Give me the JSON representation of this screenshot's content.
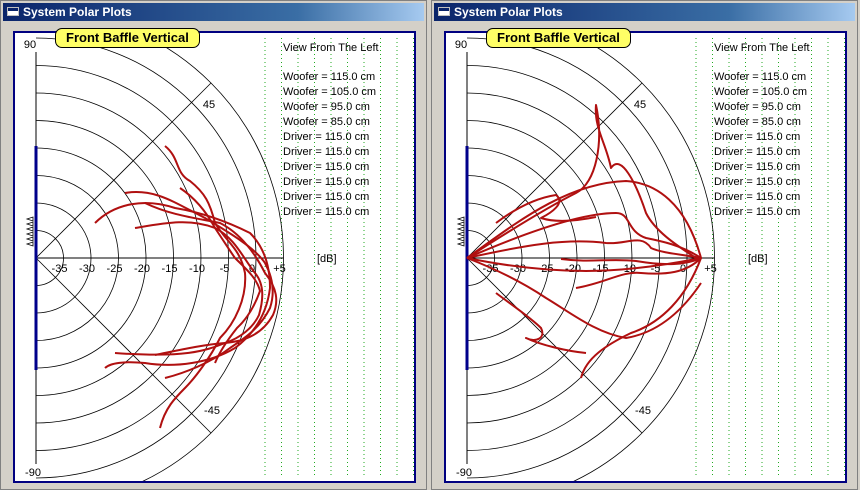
{
  "windows": [
    {
      "title": "System Polar Plots",
      "plot_title": "Front Baffle Vertical",
      "view_label": "View From The Left",
      "legend": [
        "Woofer = 115.0 cm",
        "Woofer = 105.0 cm",
        "Woofer = 95.0 cm",
        "Woofer = 85.0 cm",
        "Driver = 115.0 cm",
        "Driver = 115.0 cm",
        "Driver = 115.0 cm",
        "Driver = 115.0 cm",
        "Driver = 115.0 cm",
        "Driver = 115.0 cm"
      ],
      "angle_labels": {
        "top": "90",
        "upper": "45",
        "lower": "-45",
        "bottom": "-90"
      },
      "db_ticks": [
        "-35",
        "-30",
        "-25",
        "-20",
        "-15",
        "-10",
        "-5",
        "0",
        "+5"
      ],
      "db_unit": "[dB]",
      "curves": [
        "M 150,113 C 165,125 160,140 175,148 C 190,160 195,170 200,190 C 212,210 225,215 230,240 C 232,265 220,290 205,305 C 195,325 180,345 170,355 C 160,365 150,375 145,395",
        "M 80,190 C 100,170 130,165 160,175 C 190,180 215,190 235,200 C 250,215 255,235 255,255 C 252,280 240,300 220,315 C 195,330 160,335 130,330 C 110,328 95,330 90,335",
        "M 110,160 C 140,155 160,170 190,185 C 215,200 240,215 250,230 C 258,245 260,260 255,275 C 245,295 230,305 215,315 C 195,330 170,340 150,345",
        "M 130,170 C 155,182 180,185 205,190 C 225,200 240,220 250,240 C 262,255 264,268 258,282 C 248,300 232,308 210,310 C 185,312 160,318 140,322",
        "M 120,195 C 150,190 175,185 200,195 C 220,205 228,225 240,240 C 250,252 248,268 244,282 C 238,295 225,305 210,310 C 190,318 170,325 100,320",
        "M 165,155 C 180,165 192,180 200,195 C 210,210 215,218 220,225 C 230,235 242,245 245,258 C 240,272 233,285 222,295 C 214,305 205,318 200,330"
      ]
    },
    {
      "title": "System Polar Plots",
      "plot_title": "Front Baffle Vertical",
      "view_label": "View From The Left",
      "legend": [
        "Woofer = 115.0 cm",
        "Woofer = 105.0 cm",
        "Woofer = 95.0 cm",
        "Woofer = 85.0 cm",
        "Driver = 115.0 cm",
        "Driver = 115.0 cm",
        "Driver = 115.0 cm",
        "Driver = 115.0 cm",
        "Driver = 115.0 cm",
        "Driver = 115.0 cm"
      ],
      "angle_labels": {
        "top": "90",
        "upper": "45",
        "lower": "-45",
        "bottom": "-90"
      },
      "db_ticks": [
        "-35",
        "-30",
        "-25",
        "-20",
        "-15",
        "-10",
        "-5",
        "0",
        "+5"
      ],
      "db_unit": "[dB]",
      "curves": [
        "M 21,225 C 60,200 100,175 130,160 C 150,150 158,110 150,72 C 148,95 160,110 165,135 C 175,120 190,150 200,180 C 210,200 235,215 250,225",
        "M 21,225 C 70,190 120,150 180,148 C 210,150 240,170 255,225 C 240,265 215,290 185,300 C 160,312 140,325 135,345",
        "M 21,225 C 90,195 140,180 170,180 C 185,180 180,198 200,205 C 215,208 235,212 255,225 C 240,240 220,242 195,240 C 175,238 160,250 130,255",
        "M 21,225 C 80,212 120,205 160,210 C 180,212 195,200 205,215 C 215,220 240,222 255,225 C 240,232 220,233 190,228 C 165,225 145,230 115,226",
        "M 21,225 C 60,240 85,255 100,265 C 125,280 150,300 180,305 C 210,300 235,280 255,250",
        "M 50,190 C 70,175 90,165 110,162 C 120,170 105,180 95,185 C 110,190 130,188 150,184",
        "M 50,260 C 70,275 85,285 95,295 C 100,305 90,310 80,305 C 95,312 120,318 140,320",
        "M 21,225 C 60,233 100,238 140,238 C 180,238 220,232 255,225"
      ]
    }
  ]
}
